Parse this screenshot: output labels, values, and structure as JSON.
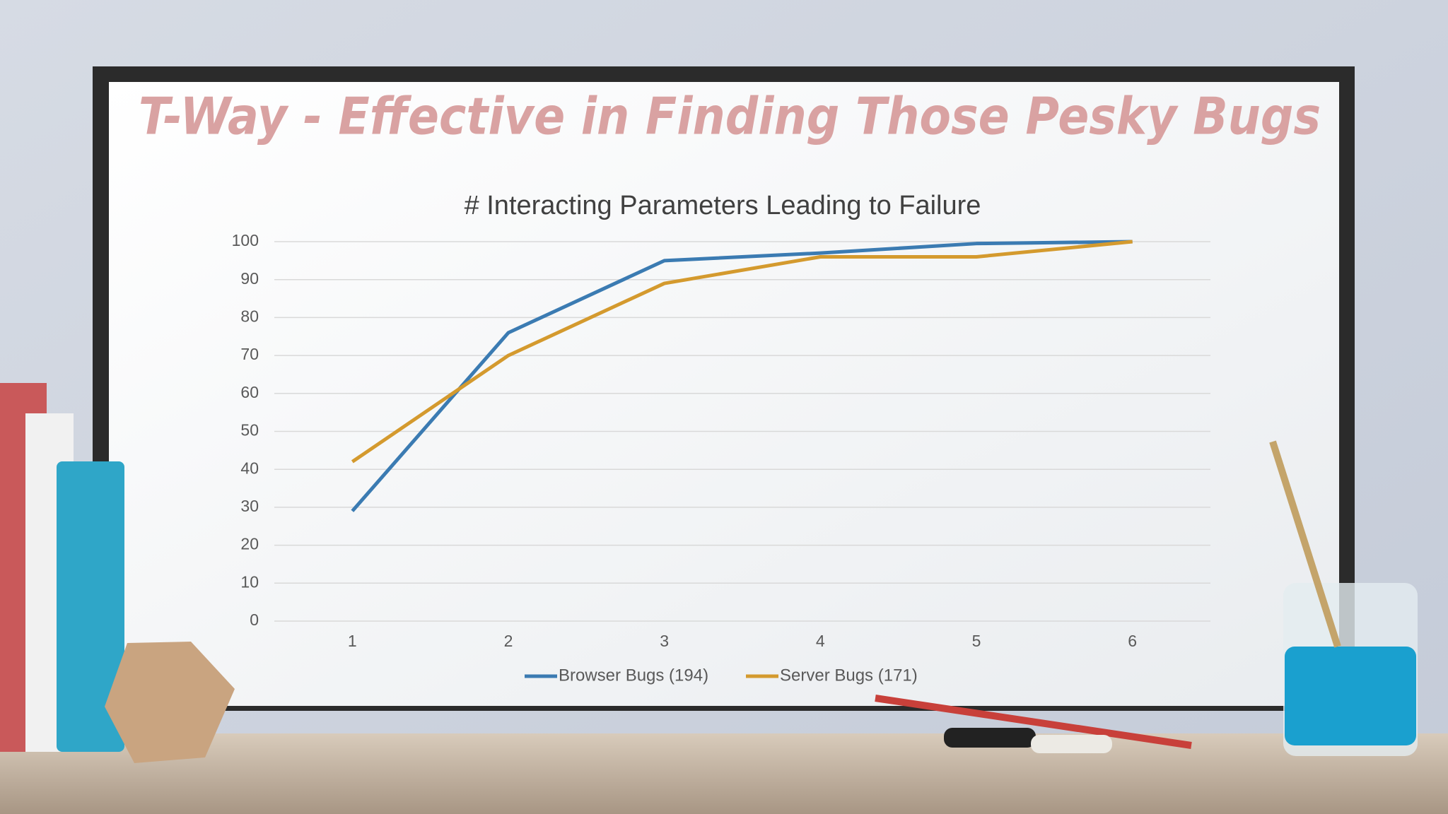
{
  "slide_title": "T-Way - Effective in Finding Those Pesky Bugs",
  "chart_data": {
    "type": "line",
    "title": "# Interacting Parameters Leading to Failure",
    "categories": [
      "1",
      "2",
      "3",
      "4",
      "5",
      "6"
    ],
    "series": [
      {
        "name": "Browser Bugs (194)",
        "color": "#3b7bb2",
        "values": [
          29,
          76,
          95,
          97,
          99.5,
          100
        ]
      },
      {
        "name": "Server Bugs (171)",
        "color": "#d49a2e",
        "values": [
          42,
          70,
          89,
          96,
          96,
          100
        ]
      }
    ],
    "ylim": [
      0,
      100
    ],
    "yticks": [
      0,
      10,
      20,
      30,
      40,
      50,
      60,
      70,
      80,
      90,
      100
    ],
    "grid": true,
    "legend": "bottom"
  }
}
